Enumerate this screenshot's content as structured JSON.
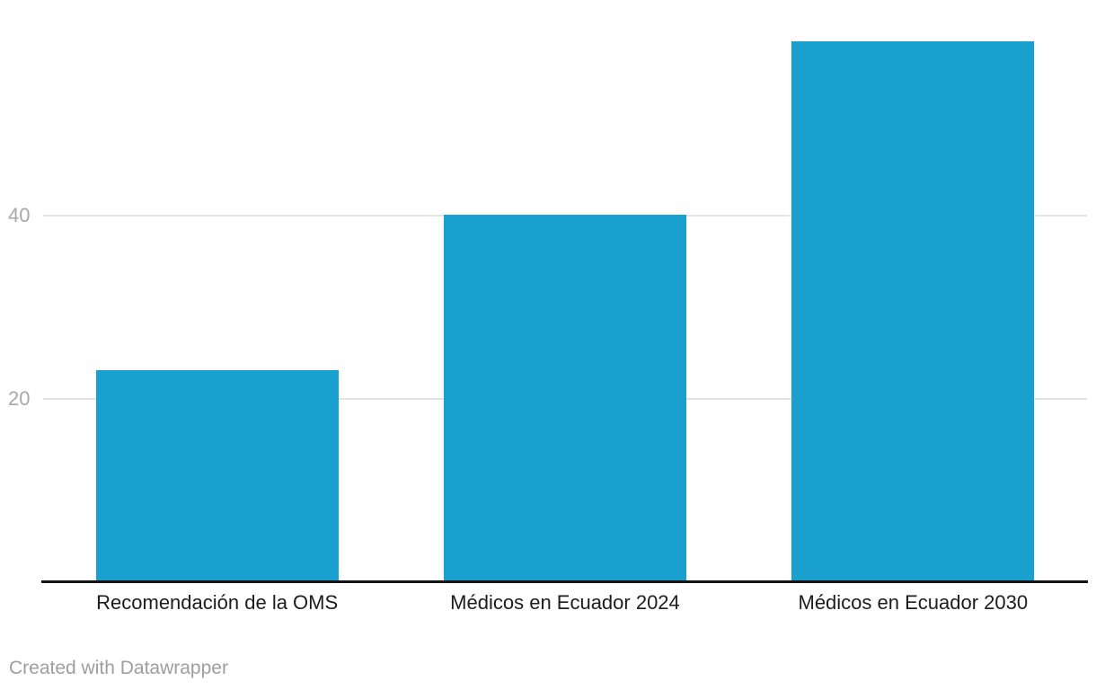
{
  "chart_data": {
    "type": "bar",
    "title": "",
    "xlabel": "",
    "ylabel": "",
    "categories": [
      "Recomendación de la OMS",
      "Médicos en Ecuador 2024",
      "Médicos en Ecuador 2030"
    ],
    "values": [
      23,
      40,
      59
    ],
    "yticks": [
      20,
      40
    ],
    "ylim": [
      0,
      63
    ],
    "grid": true,
    "legend": "none",
    "bar_color": "#19a0cf"
  },
  "footer": {
    "credit": "Created with Datawrapper"
  },
  "colors": {
    "bar": "#19a0cf",
    "gridline": "#e4e4e4",
    "axis_line": "#131313",
    "tick_label": "#a8a8a8",
    "category_label": "#1d1d1d",
    "credit_text": "#9e9e9e",
    "background": "#ffffff"
  }
}
